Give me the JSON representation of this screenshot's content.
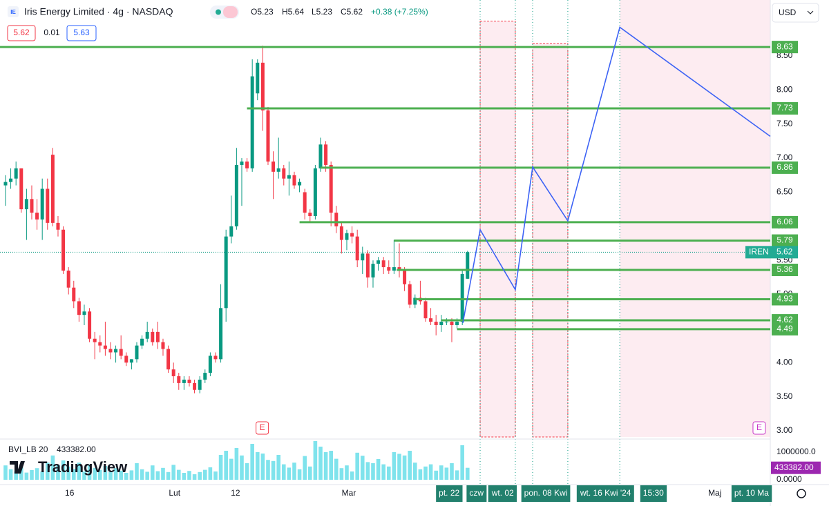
{
  "header": {
    "symbol_icon": "IE",
    "title": "Iris Energy Limited · 4g · NASDAQ",
    "open": "O5.23",
    "high": "H5.64",
    "low": "L5.23",
    "close": "C5.62",
    "change": "+0.38 (+7.25%)",
    "bid": "5.62",
    "spread": "0.01",
    "ask": "5.63",
    "currency": "USD",
    "logo": "TradingView"
  },
  "chart_data": {
    "type": "candlestick",
    "up_color": "#089981",
    "down_color": "#f23645",
    "xlim": [
      -1.05,
      145.66
    ],
    "ylim": [
      2.909,
      9.32
    ],
    "yticks": [
      {
        "value": 3,
        "label": "3.00"
      },
      {
        "value": 3.5,
        "label": "3.50"
      },
      {
        "value": 4,
        "label": "4.00"
      },
      {
        "value": 4.5,
        "label": "4.50"
      },
      {
        "value": 5,
        "label": "5.00"
      },
      {
        "value": 5.5,
        "label": "5.50"
      },
      {
        "value": 6,
        "label": "6.00"
      },
      {
        "value": 6.5,
        "label": "6.50"
      },
      {
        "value": 7,
        "label": "7.00"
      },
      {
        "value": 7.5,
        "label": "7.50"
      },
      {
        "value": 8,
        "label": "8.00"
      },
      {
        "value": 8.5,
        "label": "8.50"
      }
    ],
    "xticks": [
      {
        "value": 12.2,
        "label": "16"
      },
      {
        "value": 32.2,
        "label": "Lut"
      },
      {
        "value": 43.8,
        "label": "12"
      },
      {
        "value": 65.4,
        "label": "Mar"
      },
      {
        "value": 135.1,
        "label": "Maj"
      }
    ],
    "xticks_highlight": [
      {
        "value": 84.5,
        "label": "pt. 22"
      },
      {
        "value": 89.7,
        "label": "czw"
      },
      {
        "value": 94.7,
        "label": "wt. 02"
      },
      {
        "value": 102.9,
        "label": "pon. 08 Kwi"
      },
      {
        "value": 114.3,
        "label": "wt. 16 Kwi '24"
      },
      {
        "value": 123.4,
        "label": "15:30"
      },
      {
        "value": 142.1,
        "label": "pt. 10 Ma"
      }
    ],
    "candles": [
      [
        6.6,
        6.75,
        6.3,
        6.65
      ],
      [
        6.65,
        6.85,
        6.55,
        6.7
      ],
      [
        6.7,
        6.95,
        6.6,
        6.85
      ],
      [
        6.85,
        6.85,
        6.2,
        6.25
      ],
      [
        6.25,
        6.55,
        5.8,
        6.4
      ],
      [
        6.4,
        6.6,
        6.1,
        6.2
      ],
      [
        6.2,
        6.4,
        5.95,
        6.1
      ],
      [
        6.1,
        6.7,
        5.8,
        6.55
      ],
      [
        6.55,
        6.7,
        5.95,
        6.05
      ],
      [
        7.05,
        7.15,
        6.0,
        6.05
      ],
      [
        6.05,
        6.15,
        5.85,
        5.95
      ],
      [
        5.95,
        6.0,
        5.3,
        5.35
      ],
      [
        5.35,
        5.4,
        5.0,
        5.1
      ],
      [
        5.1,
        5.2,
        4.8,
        4.9
      ],
      [
        4.9,
        4.95,
        4.6,
        4.7
      ],
      [
        4.7,
        4.85,
        4.55,
        4.75
      ],
      [
        4.75,
        4.8,
        4.3,
        4.35
      ],
      [
        4.35,
        4.45,
        4.05,
        4.3
      ],
      [
        4.3,
        4.4,
        4.15,
        4.25
      ],
      [
        4.25,
        4.6,
        4.1,
        4.2
      ],
      [
        4.2,
        4.3,
        4.05,
        4.15
      ],
      [
        4.15,
        4.25,
        4.0,
        4.2
      ],
      [
        4.2,
        4.4,
        4.05,
        4.1
      ],
      [
        4.1,
        4.15,
        3.95,
        4.0
      ],
      [
        4.0,
        4.05,
        3.9,
        4.05
      ],
      [
        4.05,
        4.3,
        4.0,
        4.25
      ],
      [
        4.25,
        4.4,
        4.2,
        4.35
      ],
      [
        4.35,
        4.6,
        4.3,
        4.45
      ],
      [
        4.45,
        4.5,
        4.25,
        4.3
      ],
      [
        4.45,
        4.6,
        4.2,
        4.3
      ],
      [
        4.3,
        4.35,
        4.1,
        4.2
      ],
      [
        4.2,
        4.25,
        3.85,
        3.9
      ],
      [
        3.9,
        4.0,
        3.7,
        3.8
      ],
      [
        3.8,
        3.85,
        3.6,
        3.7
      ],
      [
        3.7,
        3.8,
        3.6,
        3.75
      ],
      [
        3.75,
        3.8,
        3.65,
        3.7
      ],
      [
        3.7,
        3.75,
        3.55,
        3.6
      ],
      [
        3.6,
        3.8,
        3.55,
        3.75
      ],
      [
        3.75,
        3.9,
        3.7,
        3.85
      ],
      [
        3.85,
        4.15,
        3.8,
        4.1
      ],
      [
        4.1,
        4.15,
        4.0,
        4.05
      ],
      [
        4.05,
        5.15,
        4.0,
        4.8
      ],
      [
        4.8,
        5.95,
        4.6,
        5.85
      ],
      [
        5.85,
        6.45,
        5.75,
        6.0
      ],
      [
        6.0,
        7.15,
        5.95,
        6.9
      ],
      [
        6.9,
        7.0,
        6.3,
        6.95
      ],
      [
        6.95,
        7.0,
        6.8,
        6.85
      ],
      [
        6.85,
        8.45,
        6.8,
        8.2
      ],
      [
        7.95,
        8.45,
        7.85,
        8.4
      ],
      [
        8.4,
        8.65,
        7.4,
        7.7
      ],
      [
        7.7,
        7.75,
        6.9,
        6.95
      ],
      [
        6.95,
        7.1,
        6.4,
        6.8
      ],
      [
        6.8,
        7.3,
        6.7,
        6.85
      ],
      [
        6.85,
        6.9,
        6.6,
        6.7
      ],
      [
        6.7,
        6.95,
        6.45,
        6.75
      ],
      [
        6.75,
        6.8,
        6.55,
        6.6
      ],
      [
        6.6,
        6.7,
        6.5,
        6.65
      ],
      [
        6.5,
        6.55,
        6.1,
        6.2
      ],
      [
        6.2,
        6.25,
        6.05,
        6.15
      ],
      [
        6.15,
        6.9,
        6.1,
        6.85
      ],
      [
        6.85,
        7.3,
        6.8,
        7.2
      ],
      [
        7.2,
        7.25,
        6.8,
        6.9
      ],
      [
        6.9,
        6.95,
        6.0,
        6.2
      ],
      [
        6.2,
        6.3,
        5.9,
        6.0
      ],
      [
        6.0,
        6.05,
        5.6,
        5.8
      ],
      [
        5.8,
        5.95,
        5.65,
        5.9
      ],
      [
        5.9,
        6.0,
        5.75,
        5.85
      ],
      [
        5.85,
        5.95,
        5.4,
        5.5
      ],
      [
        5.5,
        5.7,
        5.3,
        5.6
      ],
      [
        5.6,
        5.65,
        5.1,
        5.25
      ],
      [
        5.25,
        5.5,
        5.1,
        5.45
      ],
      [
        5.45,
        5.55,
        5.35,
        5.5
      ],
      [
        5.5,
        5.55,
        5.3,
        5.4
      ],
      [
        5.4,
        5.5,
        5.3,
        5.35
      ],
      [
        5.35,
        5.8,
        5.3,
        5.4
      ],
      [
        5.4,
        5.75,
        5.25,
        5.35
      ],
      [
        5.35,
        5.4,
        5.05,
        5.15
      ],
      [
        5.15,
        5.2,
        4.8,
        4.85
      ],
      [
        4.85,
        5.0,
        4.8,
        4.95
      ],
      [
        4.95,
        5.2,
        4.85,
        4.9
      ],
      [
        4.9,
        4.95,
        4.6,
        4.65
      ],
      [
        4.65,
        4.8,
        4.55,
        4.6
      ],
      [
        4.6,
        4.7,
        4.4,
        4.55
      ],
      [
        4.55,
        4.7,
        4.45,
        4.6
      ],
      [
        4.6,
        4.65,
        4.55,
        4.6
      ],
      [
        4.6,
        4.65,
        4.3,
        4.55
      ],
      [
        4.55,
        4.65,
        4.5,
        4.6
      ],
      [
        4.6,
        5.35,
        4.55,
        5.3
      ],
      [
        5.23,
        5.64,
        5.23,
        5.62
      ]
    ],
    "volume": {
      "name": "BVI_LB 20",
      "color": "#7fe3ec",
      "value_label": "433382.00",
      "ylim": [
        0,
        1475000
      ],
      "yticks": [
        {
          "value": 1000000,
          "label": "1000000.0"
        },
        {
          "value": 0,
          "label": "0.0000"
        }
      ],
      "values": [
        520000,
        380000,
        300000,
        450000,
        260000,
        350000,
        420000,
        300000,
        620000,
        880000,
        540000,
        700000,
        480000,
        390000,
        620000,
        300000,
        560000,
        430000,
        360000,
        500000,
        280000,
        420000,
        330000,
        250000,
        340000,
        600000,
        380000,
        290000,
        520000,
        310000,
        430000,
        280000,
        540000,
        360000,
        250000,
        320000,
        200000,
        280000,
        360000,
        450000,
        300000,
        900000,
        1050000,
        760000,
        1150000,
        880000,
        600000,
        1300000,
        1000000,
        950000,
        720000,
        680000,
        900000,
        560000,
        440000,
        620000,
        380000,
        860000,
        480000,
        1400000,
        1200000,
        1000000,
        1050000,
        760000,
        420000,
        520000,
        300000,
        980000,
        870000,
        640000,
        600000,
        750000,
        560000,
        480000,
        1000000,
        940000,
        880000,
        1050000,
        620000,
        380000,
        480000,
        560000,
        330000,
        520000,
        440000,
        600000,
        340000,
        1250000,
        433382
      ]
    },
    "level_color": "#4caf50",
    "levels": [
      {
        "value": 8.63,
        "from": -1.05
      },
      {
        "value": 7.73,
        "from": 46
      },
      {
        "value": 6.86,
        "from": 60
      },
      {
        "value": 6.06,
        "from": 56
      },
      {
        "value": 5.79,
        "from": 74
      },
      {
        "value": 5.36,
        "from": 74.5
      },
      {
        "value": 4.93,
        "from": 78
      },
      {
        "value": 4.62,
        "from": 83
      },
      {
        "value": 4.49,
        "from": 86
      }
    ],
    "projection": {
      "color": "#3d63f5",
      "x": [
        87.1,
        90.4,
        97.1,
        100.4,
        107.1,
        117,
        145.66
      ],
      "values": [
        4.58,
        5.95,
        5.07,
        6.87,
        6.08,
        8.92,
        7.32
      ]
    },
    "zone_color": "#fdecf1",
    "zones": [
      {
        "from": 90.4,
        "to": 97.1,
        "top": 9.01
      },
      {
        "from": 100.4,
        "to": 107.1,
        "top": 8.68
      },
      {
        "from": 117,
        "to": 145.66
      }
    ],
    "last_price": {
      "symbol": "IREN",
      "value": 5.62
    },
    "earnings": [
      {
        "x": 48.9,
        "label": "E"
      },
      {
        "x": 143.55,
        "label": "E"
      }
    ]
  }
}
